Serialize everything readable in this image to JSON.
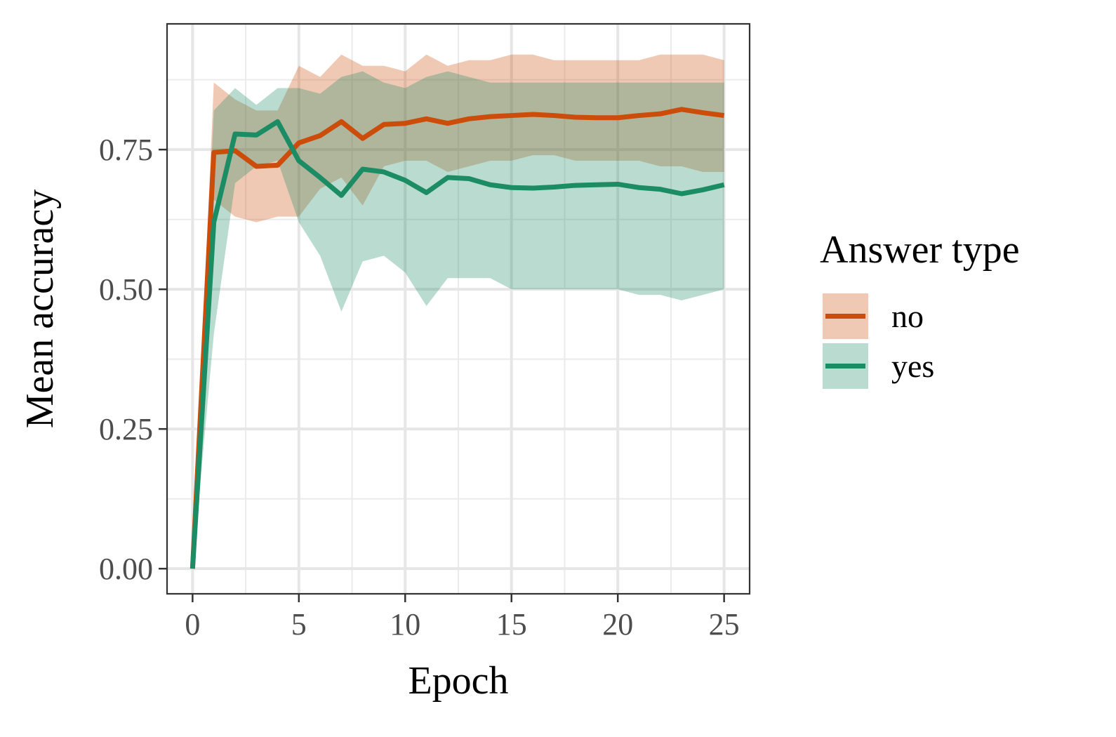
{
  "chart_data": {
    "type": "line",
    "xlabel": "Epoch",
    "ylabel": "Mean accuracy",
    "xlim": [
      -1.2,
      26.2
    ],
    "ylim": [
      -0.11,
      2.45
    ],
    "x_ticks": [
      0,
      5,
      10,
      15,
      20,
      25
    ],
    "x_tick_labels": [
      "0",
      "5",
      "10",
      "15",
      "20",
      "25"
    ],
    "y_ticks": [
      0,
      0.25,
      0.5,
      0.75
    ],
    "y_tick_labels": [
      "0.00",
      "0.25",
      "0.50",
      "0.75"
    ],
    "y_view_max": 0.975,
    "y_view_min": -0.045,
    "x_view_min": -1.2,
    "x_view_max": 26.2,
    "grid": true,
    "legend_title": "Answer type",
    "legend_position": "right",
    "series": [
      {
        "name": "no",
        "color": "#cc4c0a",
        "band_color": "#f0c8b6",
        "x": [
          0,
          1,
          2,
          3,
          4,
          5,
          6,
          7,
          8,
          9,
          10,
          11,
          12,
          13,
          14,
          15,
          16,
          17,
          18,
          19,
          20,
          21,
          22,
          23,
          24,
          25
        ],
        "y": [
          0.0,
          0.745,
          0.748,
          0.72,
          0.722,
          0.762,
          0.775,
          0.8,
          0.77,
          0.795,
          0.797,
          0.805,
          0.797,
          0.805,
          0.809,
          0.811,
          0.813,
          0.811,
          0.808,
          0.807,
          0.807,
          0.811,
          0.814,
          0.822,
          0.816,
          0.811
        ],
        "lower": [
          0.0,
          0.66,
          0.63,
          0.62,
          0.63,
          0.63,
          0.68,
          0.7,
          0.65,
          0.72,
          0.73,
          0.73,
          0.71,
          0.72,
          0.73,
          0.73,
          0.74,
          0.74,
          0.73,
          0.73,
          0.73,
          0.73,
          0.72,
          0.72,
          0.71,
          0.71
        ],
        "upper": [
          0.0,
          0.87,
          0.84,
          0.82,
          0.82,
          0.9,
          0.88,
          0.92,
          0.9,
          0.9,
          0.89,
          0.92,
          0.9,
          0.91,
          0.91,
          0.92,
          0.92,
          0.91,
          0.91,
          0.91,
          0.91,
          0.91,
          0.92,
          0.92,
          0.92,
          0.91
        ]
      },
      {
        "name": "yes",
        "color": "#1b8c64",
        "band_color": "#b8ddd0",
        "x": [
          0,
          1,
          2,
          3,
          4,
          5,
          6,
          7,
          8,
          9,
          10,
          11,
          12,
          13,
          14,
          15,
          16,
          17,
          18,
          19,
          20,
          21,
          22,
          23,
          24,
          25
        ],
        "y": [
          0.0,
          0.62,
          0.778,
          0.776,
          0.8,
          0.73,
          0.7,
          0.668,
          0.715,
          0.71,
          0.695,
          0.673,
          0.7,
          0.698,
          0.687,
          0.682,
          0.681,
          0.683,
          0.686,
          0.687,
          0.688,
          0.682,
          0.679,
          0.671,
          0.678,
          0.687
        ],
        "lower": [
          0.0,
          0.42,
          0.69,
          0.72,
          0.73,
          0.62,
          0.56,
          0.46,
          0.55,
          0.56,
          0.53,
          0.47,
          0.52,
          0.52,
          0.52,
          0.5,
          0.5,
          0.5,
          0.5,
          0.5,
          0.5,
          0.49,
          0.49,
          0.48,
          0.49,
          0.5
        ],
        "upper": [
          0.0,
          0.82,
          0.86,
          0.83,
          0.86,
          0.86,
          0.85,
          0.88,
          0.89,
          0.87,
          0.86,
          0.88,
          0.89,
          0.88,
          0.87,
          0.87,
          0.87,
          0.87,
          0.87,
          0.87,
          0.87,
          0.87,
          0.87,
          0.87,
          0.87,
          0.87
        ]
      }
    ]
  }
}
